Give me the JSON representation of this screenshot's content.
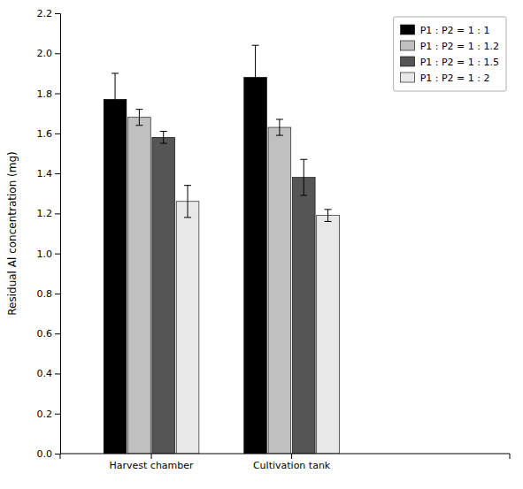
{
  "chart_data": {
    "type": "bar",
    "categories": [
      "Harvest chamber",
      "Cultivation tank"
    ],
    "series": [
      {
        "name": "P1 : P2 = 1 : 1",
        "color": "#000000",
        "values": [
          1.77,
          1.88
        ],
        "errors": [
          0.13,
          0.16
        ]
      },
      {
        "name": "P1 : P2 = 1 : 1.2",
        "color": "#c0c0c0",
        "values": [
          1.68,
          1.63
        ],
        "errors": [
          0.04,
          0.04
        ]
      },
      {
        "name": "P1 : P2 = 1 : 1.5",
        "color": "#555555",
        "values": [
          1.58,
          1.38
        ],
        "errors": [
          0.03,
          0.09
        ]
      },
      {
        "name": "P1 : P2 = 1 : 2",
        "color": "#e8e8e8",
        "values": [
          1.26,
          1.19
        ],
        "errors": [
          0.08,
          0.03
        ]
      }
    ],
    "ylabel": "Residual Al concentration (mg)",
    "ylim": [
      0.0,
      2.2
    ],
    "yticks": [
      {
        "value": 0.0,
        "label": "0.0"
      },
      0.2,
      0.4,
      0.6,
      0.8,
      {
        "value": 1.0,
        "label": "1.0"
      },
      1.2,
      1.4,
      1.6,
      1.8,
      {
        "value": 2.0,
        "label": "2.0"
      },
      2.2
    ],
    "grid": false,
    "legend": "upper right"
  }
}
